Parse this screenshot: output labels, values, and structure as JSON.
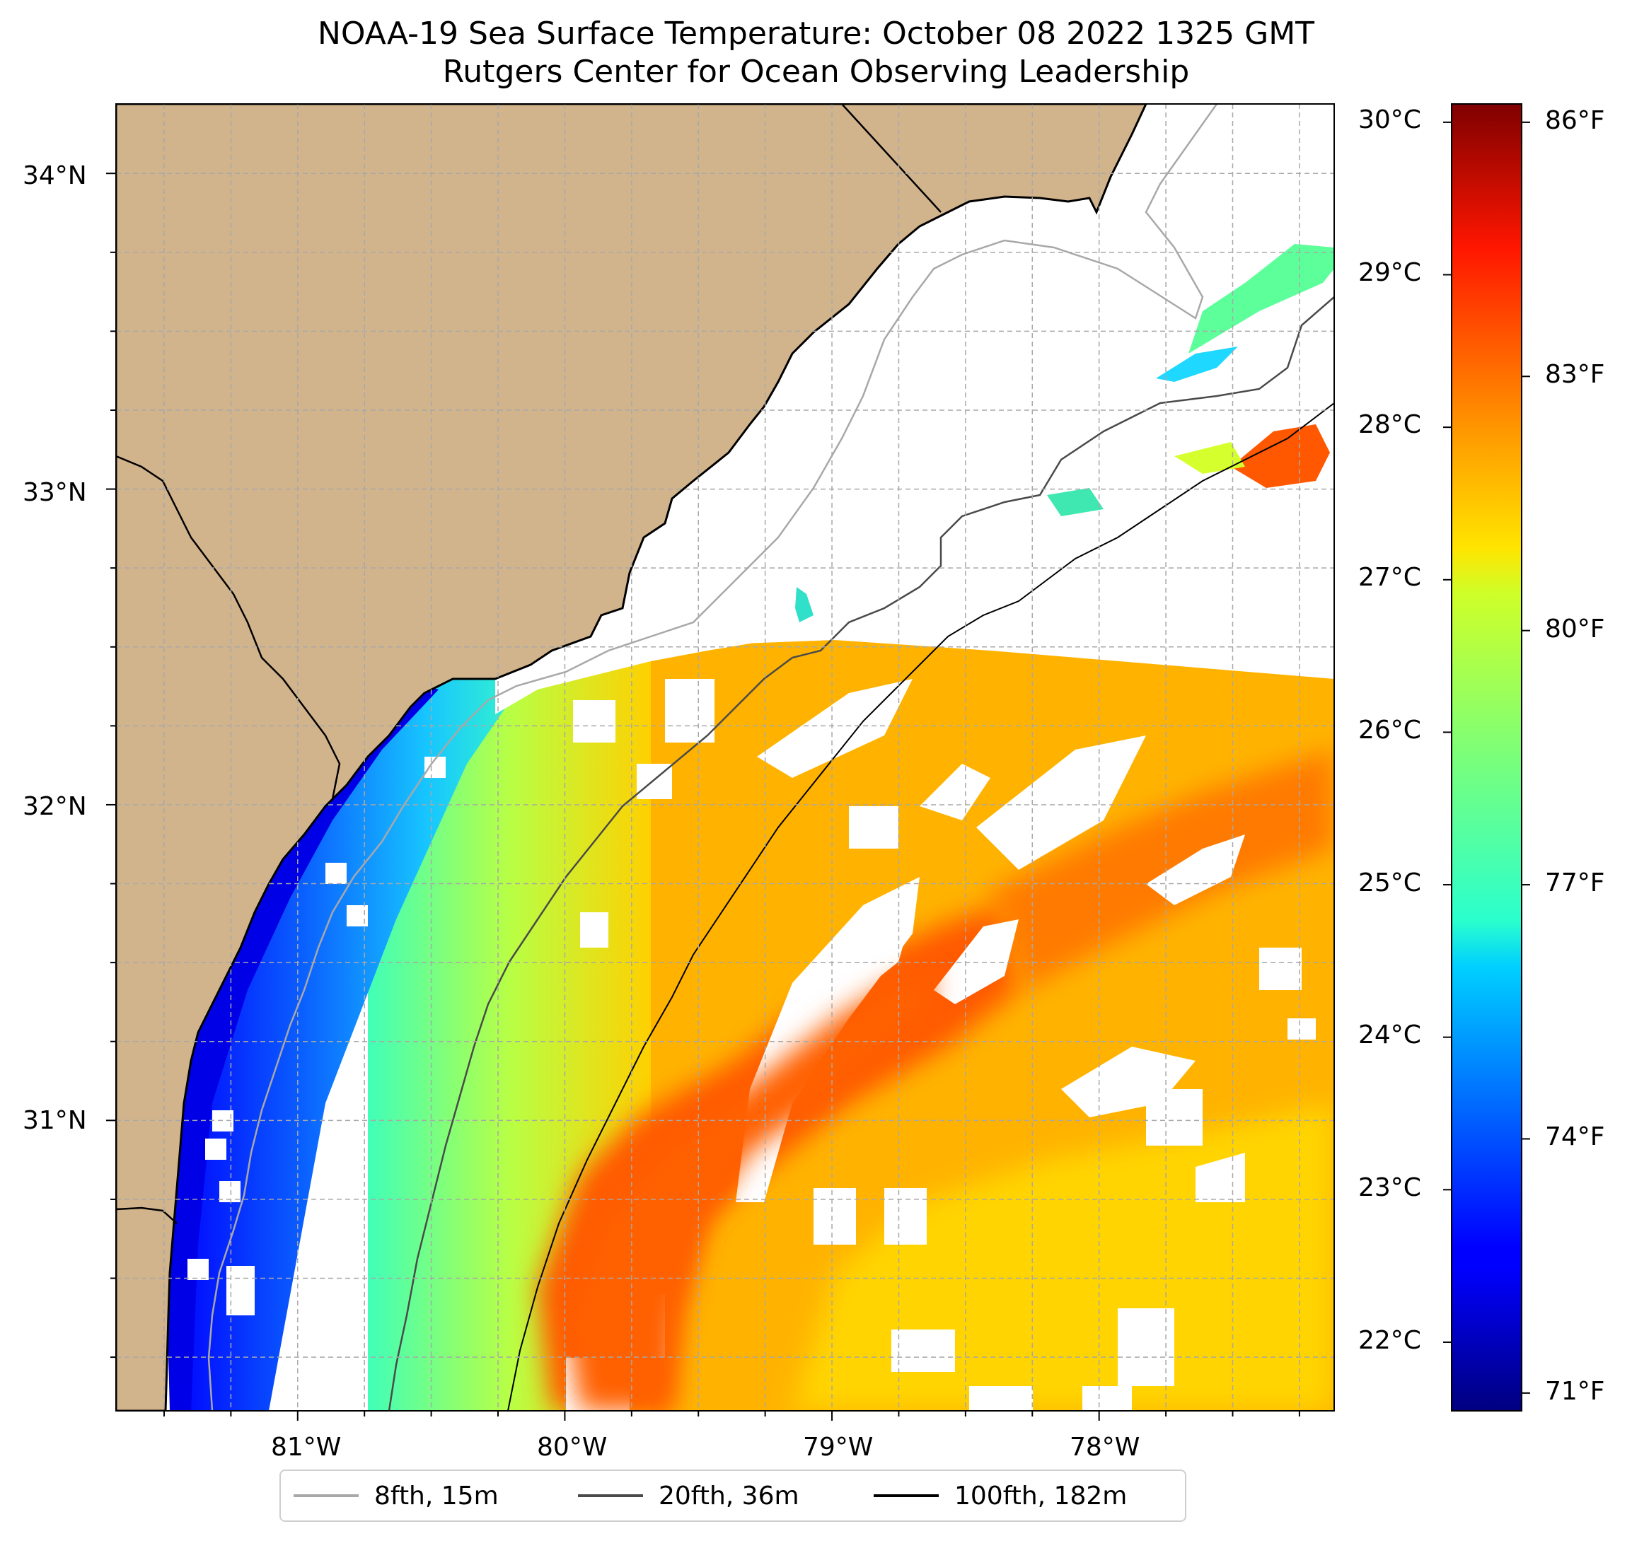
{
  "title": {
    "line1": "NOAA-19 Sea Surface Temperature: October 08 2022 1325 GMT",
    "line2": "Rutgers Center for Ocean Observing Leadership"
  },
  "colors": {
    "land": "#d2b48c",
    "lakes": "#9ab8e6",
    "no_data": "#ffffff",
    "grid": "#a8a8a8",
    "contour_8fth": "#a8a8a8",
    "contour_20fth": "#4a4a4a",
    "contour_100fth": "#000000"
  },
  "map": {
    "lon_range": [
      -81.68,
      -77.12
    ],
    "lat_range": [
      30.08,
      34.22
    ],
    "lon_ticks": [
      "81°W",
      "80°W",
      "79°W",
      "78°W"
    ],
    "lat_ticks": [
      "34°N",
      "33°N",
      "32°N",
      "31°N"
    ],
    "gridlines": true,
    "colormap": "jet"
  },
  "colorbar": {
    "min_c": 21.55,
    "max_c": 30.12,
    "celsius_ticks": [
      "30°C",
      "29°C",
      "28°C",
      "27°C",
      "26°C",
      "25°C",
      "24°C",
      "23°C",
      "22°C"
    ],
    "fahrenheit_ticks": [
      "86°F",
      "83°F",
      "80°F",
      "77°F",
      "74°F",
      "71°F"
    ]
  },
  "legend": {
    "placement": "bottom-center",
    "entries": [
      {
        "label": "8fth, 15m",
        "color": "#a8a8a8"
      },
      {
        "label": "20fth, 36m",
        "color": "#4a4a4a"
      },
      {
        "label": "100fth, 182m",
        "color": "#000000"
      }
    ]
  }
}
